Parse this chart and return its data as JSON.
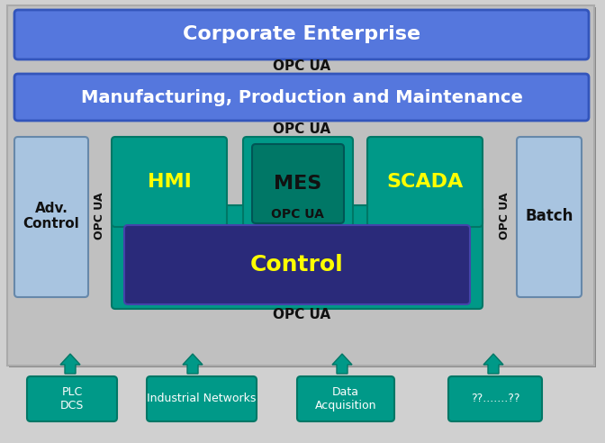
{
  "figure_bg": "#d0d0d0",
  "outer_bg": "#c0c0c0",
  "corporate_color": "#5577dd",
  "corporate_text": "Corporate Enterprise",
  "mfg_color": "#5577dd",
  "mfg_text": "Manufacturing, Production and Maintenance",
  "adv_control_grad_top": "#b8d0e8",
  "adv_control_grad_bot": "#7099bb",
  "adv_control_text": "Adv.\nControl",
  "batch_text": "Batch",
  "hmi_color": "#009988",
  "hmi_text": "HMI",
  "mes_outer_color": "#009988",
  "mes_inner_color": "#007766",
  "mes_text": "MES",
  "scada_color": "#009988",
  "scada_text": "SCADA",
  "control_outer_color": "#009988",
  "control_inner_color": "#2a2a7a",
  "control_text": "Control",
  "yellow": "#ffff00",
  "white": "#ffffff",
  "dark_text": "#111111",
  "teal_box_color": "#009988",
  "arrow_color": "#009988",
  "bottom_boxes": [
    "PLC\nDCS",
    "Industrial Networks",
    "Data\nAcquisition",
    "??.......??"
  ],
  "opcua_label": "OPC UA",
  "shadow_color": "#888888"
}
